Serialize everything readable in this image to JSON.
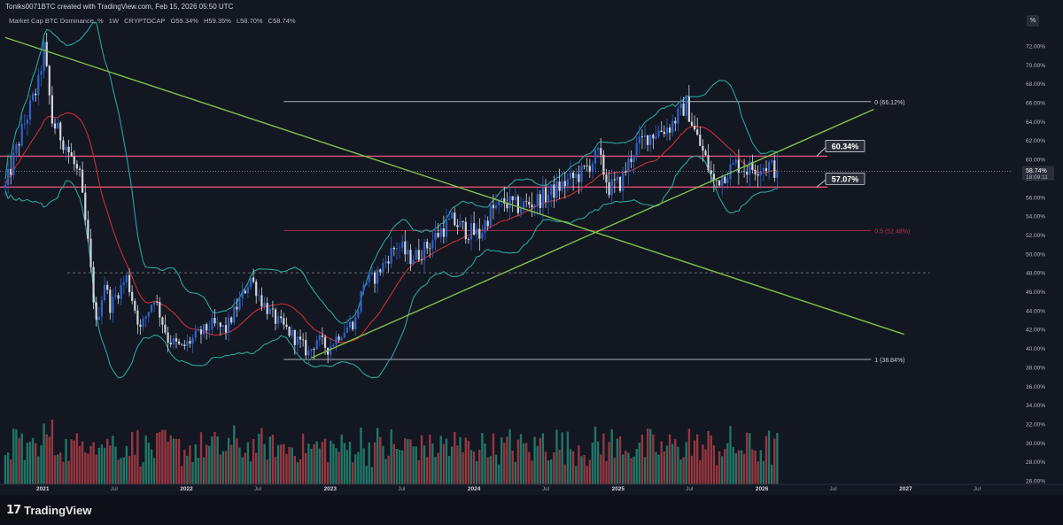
{
  "header": {
    "credit": "Toniks0071BTC created with TradingView.com, Feb 15, 2026 05:50 UTC"
  },
  "symbol": {
    "name": "Market Cap BTC Dominance, %",
    "timeframe": "1W",
    "source": "CRYPTOCAP",
    "ohlc": [
      "O59.34%",
      "H59.35%",
      "L58.70%",
      "C58.74%"
    ]
  },
  "footer": {
    "brand": "TradingView"
  },
  "corner_badge": "%",
  "chart_data": {
    "type": "candlestick",
    "interval": "1W",
    "y_unit": "%",
    "ylim": [
      25.9,
      73.5
    ],
    "x_start": "2020-09-28",
    "x_end": "2027-10-15",
    "y_ticks": [
      72,
      70,
      68,
      66,
      64,
      62,
      60,
      58,
      56,
      54,
      52,
      50,
      48,
      46,
      44,
      42,
      40,
      38,
      36,
      34,
      32,
      30,
      28,
      26
    ],
    "y_tick_labels": [
      "72.00%",
      "70.00%",
      "68.00%",
      "66.00%",
      "64.00%",
      "62.00%",
      "60.00%",
      "58.00%",
      "56.00%",
      "54.00%",
      "52.00%",
      "50.00%",
      "48.00%",
      "46.00%",
      "44.00%",
      "42.00%",
      "40.00%",
      "38.00%",
      "36.00%",
      "34.00%",
      "32.00%",
      "30.00%",
      "28.00%",
      "26.00%"
    ],
    "x_ticks": [
      {
        "label": "2021",
        "date": "2021-01-01",
        "bold": true
      },
      {
        "label": "Jul",
        "date": "2021-07-01",
        "bold": false
      },
      {
        "label": "2022",
        "date": "2022-01-01",
        "bold": true
      },
      {
        "label": "Jul",
        "date": "2022-07-01",
        "bold": false
      },
      {
        "label": "2023",
        "date": "2023-01-01",
        "bold": true
      },
      {
        "label": "Jul",
        "date": "2023-07-01",
        "bold": false
      },
      {
        "label": "2024",
        "date": "2024-01-01",
        "bold": true
      },
      {
        "label": "Jul",
        "date": "2024-07-01",
        "bold": false
      },
      {
        "label": "2025",
        "date": "2025-01-01",
        "bold": true
      },
      {
        "label": "Jul",
        "date": "2025-07-01",
        "bold": false
      },
      {
        "label": "2026",
        "date": "2026-01-01",
        "bold": true
      },
      {
        "label": "Jul",
        "date": "2026-07-01",
        "bold": false
      },
      {
        "label": "2027",
        "date": "2027-01-01",
        "bold": true
      },
      {
        "label": "Jul",
        "date": "2027-07-01",
        "bold": false
      }
    ],
    "price_path": [
      [
        "2020-09-28",
        57.0
      ],
      [
        "2020-11-09",
        63.0
      ],
      [
        "2020-12-21",
        68.0
      ],
      [
        "2021-01-04",
        71.8
      ],
      [
        "2021-01-25",
        64.0
      ],
      [
        "2021-03-01",
        61.5
      ],
      [
        "2021-04-05",
        58.0
      ],
      [
        "2021-04-26",
        51.0
      ],
      [
        "2021-05-17",
        42.5
      ],
      [
        "2021-06-07",
        47.0
      ],
      [
        "2021-06-21",
        44.5
      ],
      [
        "2021-08-02",
        47.5
      ],
      [
        "2021-09-06",
        42.0
      ],
      [
        "2021-10-11",
        45.5
      ],
      [
        "2021-11-15",
        41.0
      ],
      [
        "2021-12-20",
        40.0
      ],
      [
        "2022-01-17",
        41.0
      ],
      [
        "2022-03-07",
        42.5
      ],
      [
        "2022-04-11",
        42.0
      ],
      [
        "2022-05-16",
        45.0
      ],
      [
        "2022-06-13",
        47.5
      ],
      [
        "2022-07-11",
        45.0
      ],
      [
        "2022-08-15",
        43.0
      ],
      [
        "2022-09-12",
        42.0
      ],
      [
        "2022-10-17",
        40.5
      ],
      [
        "2022-11-07",
        39.5
      ],
      [
        "2022-11-28",
        41.0
      ],
      [
        "2022-12-26",
        40.0
      ],
      [
        "2023-01-23",
        41.5
      ],
      [
        "2023-03-06",
        43.0
      ],
      [
        "2023-03-27",
        47.0
      ],
      [
        "2023-04-24",
        47.5
      ],
      [
        "2023-06-19",
        51.0
      ],
      [
        "2023-07-24",
        49.5
      ],
      [
        "2023-08-28",
        50.5
      ],
      [
        "2023-10-09",
        52.5
      ],
      [
        "2023-11-06",
        53.5
      ],
      [
        "2023-12-11",
        52.5
      ],
      [
        "2024-01-15",
        52.0
      ],
      [
        "2024-02-12",
        54.5
      ],
      [
        "2024-03-18",
        55.5
      ],
      [
        "2024-04-22",
        55.0
      ],
      [
        "2024-06-03",
        55.5
      ],
      [
        "2024-07-15",
        56.5
      ],
      [
        "2024-08-19",
        57.5
      ],
      [
        "2024-09-30",
        58.5
      ],
      [
        "2024-11-11",
        60.5
      ],
      [
        "2024-12-09",
        57.0
      ],
      [
        "2025-01-06",
        57.5
      ],
      [
        "2025-02-10",
        61.0
      ],
      [
        "2025-03-17",
        62.5
      ],
      [
        "2025-05-12",
        63.5
      ],
      [
        "2025-06-23",
        65.8
      ],
      [
        "2025-07-14",
        63.0
      ],
      [
        "2025-08-11",
        60.0
      ],
      [
        "2025-09-01",
        57.5
      ],
      [
        "2025-09-29",
        58.5
      ],
      [
        "2025-10-27",
        59.5
      ],
      [
        "2025-11-24",
        59.0
      ],
      [
        "2025-12-22",
        59.2
      ],
      [
        "2026-01-19",
        59.4
      ],
      [
        "2026-02-09",
        58.74
      ]
    ],
    "volume_scale": [
      25.9,
      38.0
    ],
    "horizontal_lines": [
      {
        "name": "resistance",
        "value": 60.34,
        "label": "60.34%",
        "color": "#e0507a"
      },
      {
        "name": "support",
        "value": 57.07,
        "label": "57.07%",
        "color": "#e0507a"
      }
    ],
    "fib_levels": [
      {
        "value": 66.12,
        "label": "0 (66.12%)",
        "color": "#c8cbd2"
      },
      {
        "value": 52.48,
        "label": "0.5 (52.48%)",
        "color": "#b8344e"
      },
      {
        "value": 38.84,
        "label": "1 (38.84%)",
        "color": "#c8cbd2"
      }
    ],
    "fib_start": "2022-09-05",
    "fib_end": "2026-10-05",
    "gray_dashed_level": 48.0,
    "trendlines": [
      {
        "name": "descending",
        "from": [
          "2020-09-28",
          72.9
        ],
        "to": [
          "2026-12-28",
          41.5
        ],
        "color": "#7fc24a"
      },
      {
        "name": "ascending",
        "from": [
          "2022-11-14",
          39.0
        ],
        "to": [
          "2026-10-12",
          65.3
        ],
        "color": "#7fc24a"
      }
    ],
    "current_price": {
      "label": "58.74%",
      "value": 58.74,
      "countdown": "18:09:11"
    },
    "colors": {
      "background": "#131722",
      "up": "#2e62c8",
      "down": "#d1d4dc",
      "volume_up": "#24806e",
      "volume_down": "#a43a43",
      "band": "#26a69a",
      "ma": "#c62f30",
      "trend": "#7fc24a"
    }
  }
}
